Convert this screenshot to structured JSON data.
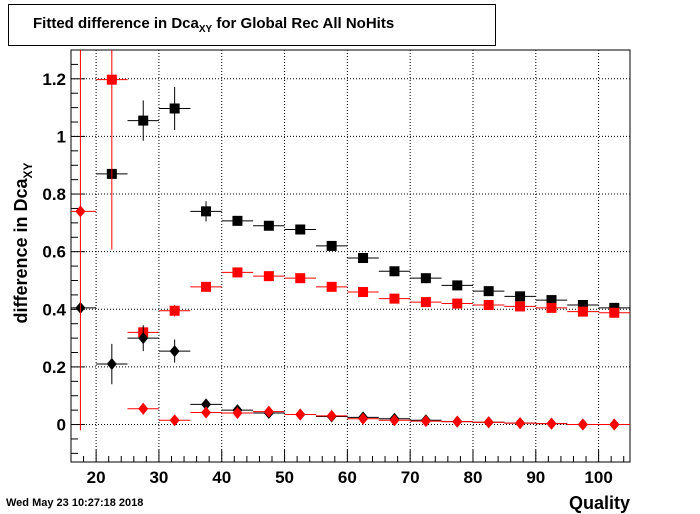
{
  "title": {
    "prefix": "Fitted difference in Dca",
    "subscript": "XY",
    "suffix": " for Global Rec All NoHits"
  },
  "timestamp": "Wed May 23 10:27:18 2018",
  "chart_data": {
    "type": "scatter",
    "xlabel": "Quality",
    "ylabel": "difference in Dca",
    "ylabel_subscript": "XY",
    "xlim": [
      16,
      105
    ],
    "ylim": [
      -0.13,
      1.3
    ],
    "xticks": [
      20,
      30,
      40,
      50,
      60,
      70,
      80,
      90,
      100
    ],
    "yticks": [
      0,
      0.2,
      0.4,
      0.6,
      0.8,
      1,
      1.2
    ],
    "ytick_labels": [
      "0",
      "0.2",
      "0.4",
      "0.6",
      "0.8",
      "1",
      "1.2"
    ],
    "grid": true,
    "x_half_width": 2.5,
    "series": [
      {
        "marker": "square",
        "color": "#000000",
        "points": [
          {
            "x": 22.5,
            "y": 0.87,
            "err": 0
          },
          {
            "x": 27.5,
            "y": 1.055,
            "err": 0.07
          },
          {
            "x": 32.5,
            "y": 1.097,
            "err": 0.075
          },
          {
            "x": 37.5,
            "y": 0.74,
            "err": 0.035
          },
          {
            "x": 42.5,
            "y": 0.707,
            "err": 0.015
          },
          {
            "x": 47.5,
            "y": 0.69,
            "err": 0.01
          },
          {
            "x": 52.5,
            "y": 0.677,
            "err": 0.01
          },
          {
            "x": 57.5,
            "y": 0.62,
            "err": 0.01
          },
          {
            "x": 62.5,
            "y": 0.578,
            "err": 0.01
          },
          {
            "x": 67.5,
            "y": 0.532,
            "err": 0.01
          },
          {
            "x": 72.5,
            "y": 0.508,
            "err": 0.01
          },
          {
            "x": 77.5,
            "y": 0.483,
            "err": 0.01
          },
          {
            "x": 82.5,
            "y": 0.463,
            "err": 0.01
          },
          {
            "x": 87.5,
            "y": 0.445,
            "err": 0.01
          },
          {
            "x": 92.5,
            "y": 0.432,
            "err": 0.01
          },
          {
            "x": 97.5,
            "y": 0.415,
            "err": 0.01
          },
          {
            "x": 102.5,
            "y": 0.405,
            "err": 0.01
          }
        ]
      },
      {
        "marker": "square",
        "color": "#ff0000",
        "points": [
          {
            "x": 22.5,
            "y": 1.197,
            "err": 0.59
          },
          {
            "x": 27.5,
            "y": 0.32,
            "err": 0.02
          },
          {
            "x": 32.5,
            "y": 0.395,
            "err": 0.02
          },
          {
            "x": 37.5,
            "y": 0.478,
            "err": 0.015
          },
          {
            "x": 42.5,
            "y": 0.528,
            "err": 0.01
          },
          {
            "x": 47.5,
            "y": 0.515,
            "err": 0.01
          },
          {
            "x": 52.5,
            "y": 0.508,
            "err": 0.01
          },
          {
            "x": 57.5,
            "y": 0.478,
            "err": 0.01
          },
          {
            "x": 62.5,
            "y": 0.46,
            "err": 0.01
          },
          {
            "x": 67.5,
            "y": 0.437,
            "err": 0.01
          },
          {
            "x": 72.5,
            "y": 0.425,
            "err": 0.01
          },
          {
            "x": 77.5,
            "y": 0.42,
            "err": 0.01
          },
          {
            "x": 82.5,
            "y": 0.415,
            "err": 0.01
          },
          {
            "x": 87.5,
            "y": 0.41,
            "err": 0.01
          },
          {
            "x": 92.5,
            "y": 0.405,
            "err": 0.01
          },
          {
            "x": 97.5,
            "y": 0.392,
            "err": 0.01
          },
          {
            "x": 102.5,
            "y": 0.388,
            "err": 0.01
          }
        ]
      },
      {
        "marker": "diamond",
        "color": "#000000",
        "points": [
          {
            "x": 17.5,
            "y": 0.405,
            "err": 0
          },
          {
            "x": 22.5,
            "y": 0.21,
            "err": 0.07
          },
          {
            "x": 27.5,
            "y": 0.3,
            "err": 0.045
          },
          {
            "x": 32.5,
            "y": 0.255,
            "err": 0.04
          },
          {
            "x": 37.5,
            "y": 0.07,
            "err": 0.015
          },
          {
            "x": 42.5,
            "y": 0.05,
            "err": 0.01
          },
          {
            "x": 47.5,
            "y": 0.04,
            "err": 0.01
          },
          {
            "x": 52.5,
            "y": 0.035,
            "err": 0.005
          },
          {
            "x": 57.5,
            "y": 0.028,
            "err": 0.005
          },
          {
            "x": 62.5,
            "y": 0.025,
            "err": 0.005
          },
          {
            "x": 67.5,
            "y": 0.02,
            "err": 0.005
          },
          {
            "x": 72.5,
            "y": 0.015,
            "err": 0.005
          },
          {
            "x": 77.5,
            "y": 0.01,
            "err": 0.005
          },
          {
            "x": 82.5,
            "y": 0.008,
            "err": 0.005
          },
          {
            "x": 87.5,
            "y": 0.005,
            "err": 0.005
          },
          {
            "x": 92.5,
            "y": 0.003,
            "err": 0.005
          },
          {
            "x": 97.5,
            "y": 0.0,
            "err": 0.005
          },
          {
            "x": 102.5,
            "y": 0.0,
            "err": 0.005
          }
        ]
      },
      {
        "marker": "diamond",
        "color": "#ff0000",
        "points": [
          {
            "x": 17.5,
            "y": 0.74,
            "err": 0.76
          },
          {
            "x": 27.5,
            "y": 0.055,
            "err": 0.02
          },
          {
            "x": 32.5,
            "y": 0.015,
            "err": 0.01
          },
          {
            "x": 37.5,
            "y": 0.042,
            "err": 0.01
          },
          {
            "x": 42.5,
            "y": 0.04,
            "err": 0.005
          },
          {
            "x": 47.5,
            "y": 0.045,
            "err": 0.005
          },
          {
            "x": 52.5,
            "y": 0.035,
            "err": 0.005
          },
          {
            "x": 57.5,
            "y": 0.03,
            "err": 0.005
          },
          {
            "x": 62.5,
            "y": 0.02,
            "err": 0.005
          },
          {
            "x": 67.5,
            "y": 0.015,
            "err": 0.005
          },
          {
            "x": 72.5,
            "y": 0.012,
            "err": 0.005
          },
          {
            "x": 77.5,
            "y": 0.01,
            "err": 0.005
          },
          {
            "x": 82.5,
            "y": 0.008,
            "err": 0.005
          },
          {
            "x": 87.5,
            "y": 0.005,
            "err": 0.005
          },
          {
            "x": 92.5,
            "y": 0.003,
            "err": 0.005
          },
          {
            "x": 97.5,
            "y": 0.0,
            "err": 0.005
          },
          {
            "x": 102.5,
            "y": 0.0,
            "err": 0.005
          }
        ]
      }
    ]
  }
}
